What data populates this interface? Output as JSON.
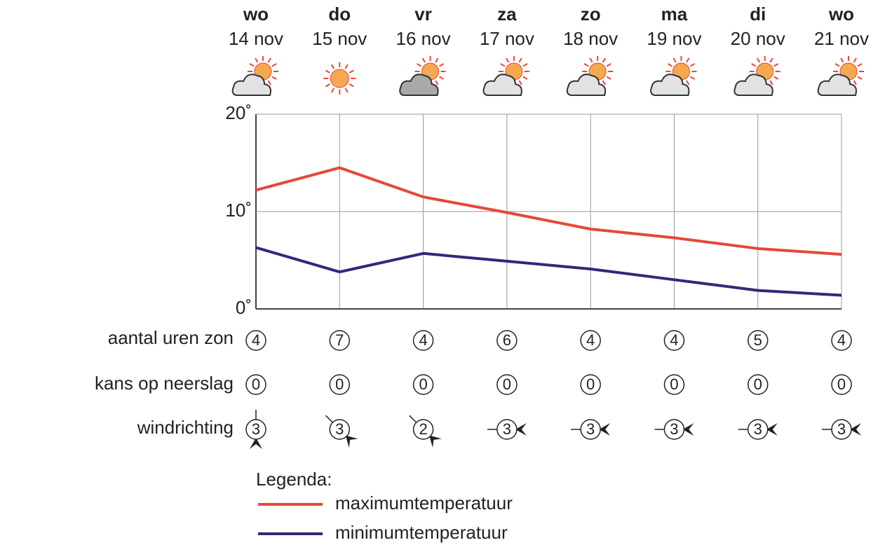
{
  "chart_data": {
    "type": "line",
    "categories": [
      "wo",
      "do",
      "vr",
      "za",
      "zo",
      "ma",
      "di",
      "wo"
    ],
    "dates": [
      "14 nov",
      "15 nov",
      "16 nov",
      "17 nov",
      "18 nov",
      "19 nov",
      "20 nov",
      "21 nov"
    ],
    "weather": [
      "partly-cloudy",
      "sunny",
      "partly-cloudy-dark",
      "partly-cloudy",
      "partly-cloudy",
      "partly-cloudy",
      "partly-cloudy",
      "partly-cloudy"
    ],
    "series": [
      {
        "name": "maximumtemperatuur",
        "color": "#e5483a",
        "values": [
          12.2,
          14.5,
          11.5,
          9.9,
          8.2,
          7.3,
          6.2,
          5.6
        ]
      },
      {
        "name": "minimumtemperatuur",
        "color": "#2e2a7a",
        "values": [
          6.3,
          3.8,
          5.7,
          4.9,
          4.1,
          3.0,
          1.9,
          1.4
        ]
      }
    ],
    "ylim": [
      0,
      20
    ],
    "yticks": [
      {
        "value": 0,
        "label": "0˚"
      },
      {
        "value": 10,
        "label": "10˚"
      },
      {
        "value": 20,
        "label": "20˚"
      }
    ],
    "grid": true,
    "sun_hours": {
      "label": "aantal uren zon",
      "values": [
        4,
        7,
        4,
        6,
        4,
        4,
        5,
        4
      ]
    },
    "precipitation": {
      "label": "kans op neerslag",
      "values": [
        0,
        0,
        0,
        0,
        0,
        0,
        0,
        0
      ]
    },
    "wind": {
      "label": "windrichting",
      "values": [
        3,
        3,
        2,
        3,
        3,
        3,
        3,
        3
      ],
      "directions": [
        180,
        135,
        135,
        90,
        90,
        90,
        90,
        90
      ]
    },
    "legend_title": "Legenda:"
  }
}
